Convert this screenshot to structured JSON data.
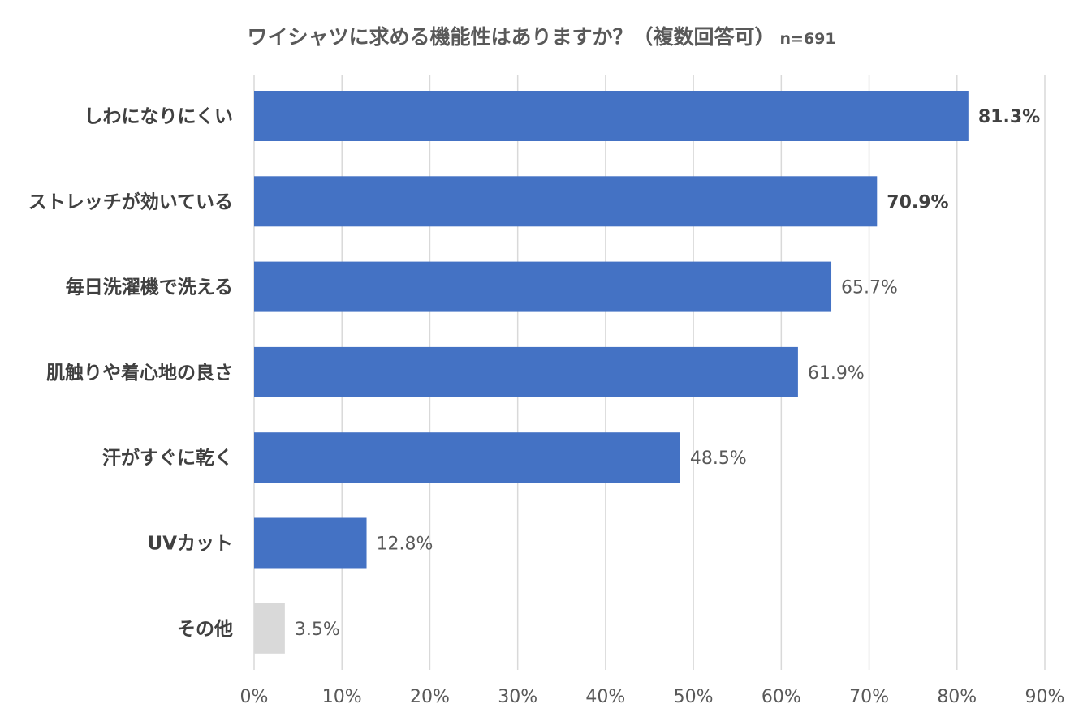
{
  "title": "ワイシャツに求める機能性はありますか？（複数回答可）",
  "sample_size": "n=691",
  "colors": {
    "primary": "#4472c4",
    "other": "#d9d9d9",
    "grid": "#d9d9d9"
  },
  "chart_data": {
    "type": "bar",
    "orientation": "horizontal",
    "title": "ワイシャツに求める機能性はありますか？（複数回答可）",
    "subtitle": "n=691",
    "categories": [
      "しわになりにくい",
      "ストレッチが効いている",
      "毎日洗濯機で洗える",
      "肌触りや着心地の良さ",
      "汗がすぐに乾く",
      "UVカット",
      "その他"
    ],
    "values": [
      81.3,
      70.9,
      65.7,
      61.9,
      48.5,
      12.8,
      3.5
    ],
    "value_labels": [
      "81.3%",
      "70.9%",
      "65.7%",
      "61.9%",
      "48.5%",
      "12.8%",
      "3.5%"
    ],
    "bold_labels": [
      true,
      true,
      false,
      false,
      false,
      false,
      false
    ],
    "bar_colors": [
      "#4472c4",
      "#4472c4",
      "#4472c4",
      "#4472c4",
      "#4472c4",
      "#4472c4",
      "#d9d9d9"
    ],
    "xlim": [
      0,
      90
    ],
    "ticks": [
      0,
      10,
      20,
      30,
      40,
      50,
      60,
      70,
      80,
      90
    ],
    "tick_labels": [
      "0%",
      "10%",
      "20%",
      "30%",
      "40%",
      "50%",
      "60%",
      "70%",
      "80%",
      "90%"
    ],
    "grid": true,
    "xlabel": "",
    "ylabel": ""
  }
}
